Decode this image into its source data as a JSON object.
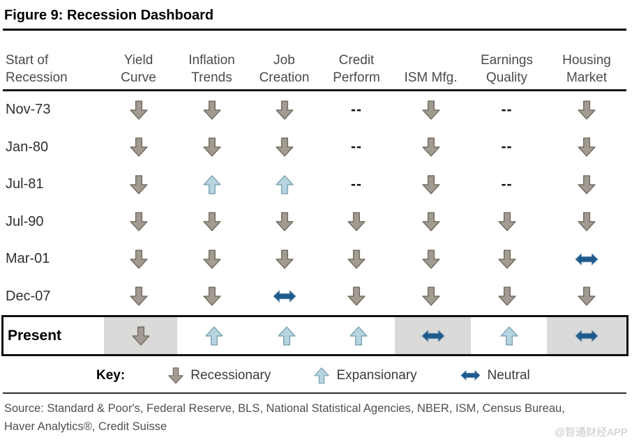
{
  "title": "Figure 9: Recession Dashboard",
  "colors": {
    "recessionary_fill": "#a29b91",
    "recessionary_stroke": "#746d62",
    "expansionary_fill": "#b6d5e0",
    "expansionary_stroke": "#7fa6b4",
    "neutral_fill": "#1e5a8c",
    "neutral_stroke": "#6990b2",
    "present_shading": "#dadad8"
  },
  "table": {
    "columns": [
      {
        "line1": "Start of",
        "line2": "Recession"
      },
      {
        "line1": "Yield",
        "line2": "Curve"
      },
      {
        "line1": "Inflation",
        "line2": "Trends"
      },
      {
        "line1": "Job",
        "line2": "Creation"
      },
      {
        "line1": "Credit",
        "line2": "Perform"
      },
      {
        "line1": "",
        "line2": "ISM Mfg."
      },
      {
        "line1": "Earnings",
        "line2": "Quality"
      },
      {
        "line1": "Housing",
        "line2": "Market"
      }
    ],
    "rows": [
      {
        "label": "Nov-73",
        "cells": [
          "recessionary",
          "recessionary",
          "recessionary",
          "--",
          "recessionary",
          "--",
          "recessionary"
        ]
      },
      {
        "label": "Jan-80",
        "cells": [
          "recessionary",
          "recessionary",
          "recessionary",
          "--",
          "recessionary",
          "--",
          "recessionary"
        ]
      },
      {
        "label": "Jul-81",
        "cells": [
          "recessionary",
          "expansionary",
          "expansionary",
          "--",
          "recessionary",
          "--",
          "recessionary"
        ]
      },
      {
        "label": "Jul-90",
        "cells": [
          "recessionary",
          "recessionary",
          "recessionary",
          "recessionary",
          "recessionary",
          "recessionary",
          "recessionary"
        ]
      },
      {
        "label": "Mar-01",
        "cells": [
          "recessionary",
          "recessionary",
          "recessionary",
          "recessionary",
          "recessionary",
          "recessionary",
          "neutral"
        ]
      },
      {
        "label": "Dec-07",
        "cells": [
          "recessionary",
          "recessionary",
          "neutral",
          "recessionary",
          "recessionary",
          "recessionary",
          "recessionary"
        ]
      }
    ],
    "present": {
      "label": "Present",
      "cells": [
        "recessionary",
        "expansionary",
        "expansionary",
        "expansionary",
        "neutral",
        "expansionary",
        "neutral"
      ],
      "shaded": [
        true,
        false,
        false,
        false,
        true,
        false,
        true
      ]
    }
  },
  "key": {
    "label": "Key:",
    "items": [
      {
        "icon": "recessionary",
        "label": "Recessionary"
      },
      {
        "icon": "expansionary",
        "label": "Expansionary"
      },
      {
        "icon": "neutral",
        "label": "Neutral"
      }
    ]
  },
  "source": "Source: Standard & Poor's, Federal Reserve, BLS, National Statistical Agencies, NBER, ISM, Census Bureau,\nHaver Analytics®, Credit Suisse",
  "watermark": "@智通财经APP",
  "chart_data": {
    "type": "table",
    "title": "Figure 9: Recession Dashboard",
    "columns": [
      "Start of Recession",
      "Yield Curve",
      "Inflation Trends",
      "Job Creation",
      "Credit Perform",
      "ISM Mfg.",
      "Earnings Quality",
      "Housing Market"
    ],
    "rows": [
      [
        "Nov-73",
        "Recessionary",
        "Recessionary",
        "Recessionary",
        "--",
        "Recessionary",
        "--",
        "Recessionary"
      ],
      [
        "Jan-80",
        "Recessionary",
        "Recessionary",
        "Recessionary",
        "--",
        "Recessionary",
        "--",
        "Recessionary"
      ],
      [
        "Jul-81",
        "Recessionary",
        "Expansionary",
        "Expansionary",
        "--",
        "Recessionary",
        "--",
        "Recessionary"
      ],
      [
        "Jul-90",
        "Recessionary",
        "Recessionary",
        "Recessionary",
        "Recessionary",
        "Recessionary",
        "Recessionary",
        "Recessionary"
      ],
      [
        "Mar-01",
        "Recessionary",
        "Recessionary",
        "Recessionary",
        "Recessionary",
        "Recessionary",
        "Recessionary",
        "Neutral"
      ],
      [
        "Dec-07",
        "Recessionary",
        "Recessionary",
        "Neutral",
        "Recessionary",
        "Recessionary",
        "Recessionary",
        "Recessionary"
      ],
      [
        "Present",
        "Recessionary",
        "Expansionary",
        "Expansionary",
        "Expansionary",
        "Neutral",
        "Expansionary",
        "Neutral"
      ]
    ],
    "present_shaded_columns": [
      "Yield Curve",
      "ISM Mfg.",
      "Housing Market"
    ],
    "legend": {
      "Recessionary": "gray down arrow",
      "Expansionary": "light blue up arrow",
      "Neutral": "dark blue horizontal double arrow"
    }
  }
}
